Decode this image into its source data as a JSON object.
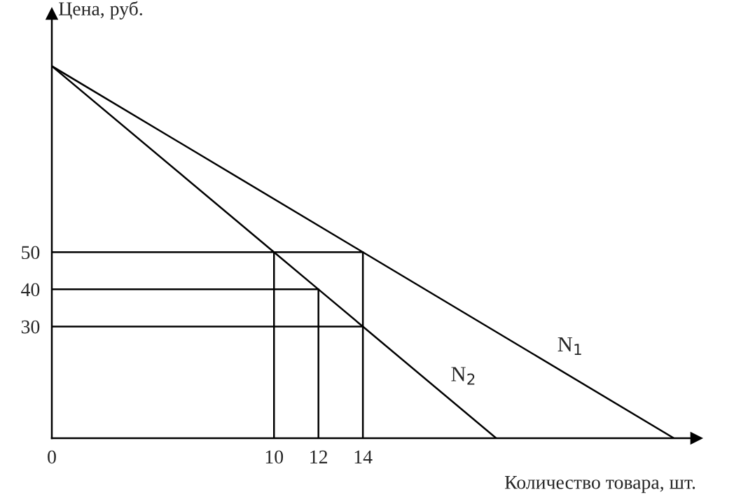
{
  "chart_data": {
    "type": "line",
    "xlabel": "Количество товара, шт.",
    "ylabel": "Цена, руб.",
    "xlim": [
      0,
      29
    ],
    "ylim": [
      0,
      114
    ],
    "xticks": [
      0,
      10,
      12,
      14
    ],
    "yticks": [
      30,
      40,
      50
    ],
    "grid": false,
    "legend": false,
    "marker": "none",
    "line_style": "solid",
    "series": [
      {
        "name": "N$_{1}$",
        "color": "#000000",
        "x": [
          0,
          14,
          28
        ],
        "values": [
          100,
          50,
          0
        ]
      },
      {
        "name": "N$_{2}$",
        "color": "#000000",
        "x": [
          0,
          10,
          12,
          14,
          20
        ],
        "values": [
          100,
          50,
          40,
          30,
          0
        ]
      },
      {
        "color": "#000000",
        "x": [
          0,
          14
        ],
        "values": [
          50,
          50
        ]
      },
      {
        "color": "#000000",
        "x": [
          0,
          12
        ],
        "values": [
          40,
          40
        ]
      },
      {
        "color": "#000000",
        "x": [
          0,
          14
        ],
        "values": [
          30,
          30
        ]
      },
      {
        "color": "#000000",
        "x": [
          10,
          10
        ],
        "values": [
          0,
          50
        ]
      },
      {
        "color": "#000000",
        "x": [
          12,
          12
        ],
        "values": [
          0,
          40
        ]
      },
      {
        "color": "#000000",
        "x": [
          14,
          14
        ],
        "values": [
          0,
          50
        ]
      }
    ]
  }
}
